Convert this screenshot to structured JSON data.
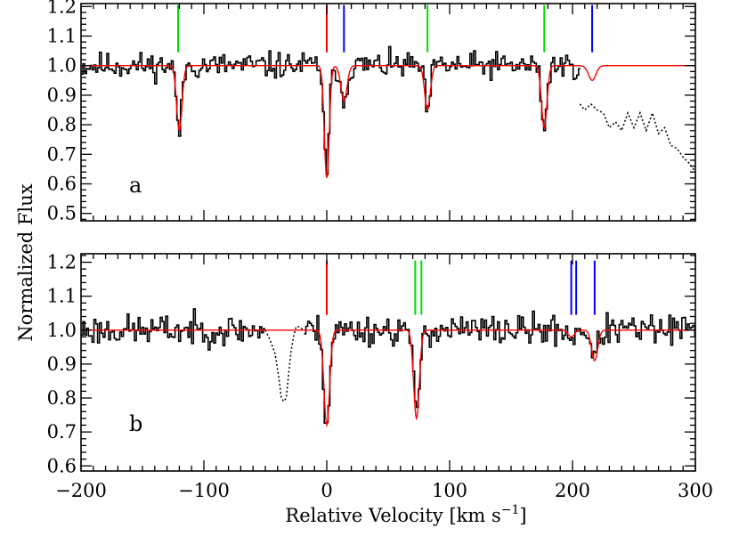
{
  "chart_data": {
    "type": "line",
    "x_axis": {
      "label": "Relative Velocity [km s",
      "label_sup": "−1",
      "label_tail": "]",
      "range": [
        -200,
        300
      ],
      "major_ticks": [
        -200,
        -100,
        0,
        100,
        200,
        300
      ],
      "major_tick_labels": [
        "−200",
        "−100",
        "0",
        "100",
        "200",
        "300"
      ],
      "minor_step": 10
    },
    "y_axis": {
      "label": "Normalized Flux"
    },
    "panels": [
      {
        "id": "a",
        "label": "a",
        "ylim": [
          0.475,
          1.21
        ],
        "yticks": [
          0.5,
          0.6,
          0.7,
          0.8,
          0.9,
          1.0,
          1.1,
          1.2
        ],
        "ytick_labels": [
          "0.5",
          "0.6",
          "0.7",
          "0.8",
          "0.9",
          "1.0",
          "1.1",
          "1.2"
        ],
        "y_minor_step": 0.02,
        "markers": [
          {
            "v": -121,
            "color": "#00dd00"
          },
          {
            "v": 0,
            "color": "#ff0000"
          },
          {
            "v": 14,
            "color": "#0000ff"
          },
          {
            "v": 82,
            "color": "#00dd00"
          },
          {
            "v": 177,
            "color": "#00dd00"
          },
          {
            "v": 216,
            "color": "#0000ff"
          }
        ],
        "components": [
          {
            "v": -120,
            "depth": 0.22,
            "width": 2.2
          },
          {
            "v": 0,
            "depth": 0.38,
            "width": 2.0
          },
          {
            "v": 14,
            "depth": 0.12,
            "width": 2.5
          },
          {
            "v": 82,
            "depth": 0.15,
            "width": 2.3
          },
          {
            "v": 177,
            "depth": 0.21,
            "width": 2.2
          },
          {
            "v": 216,
            "depth": 0.05,
            "width": 3.0
          }
        ],
        "noise_seed": 11,
        "dotted_segment": {
          "x": [
            206,
            210,
            215,
            220,
            225,
            230,
            235,
            240,
            245,
            250,
            255,
            260,
            265,
            270,
            275,
            280,
            285,
            290,
            295,
            300
          ],
          "y": [
            0.87,
            0.85,
            0.87,
            0.85,
            0.84,
            0.79,
            0.81,
            0.78,
            0.84,
            0.79,
            0.84,
            0.78,
            0.84,
            0.77,
            0.79,
            0.73,
            0.72,
            0.69,
            0.67,
            0.64
          ]
        }
      },
      {
        "id": "b",
        "label": "b",
        "ylim": [
          0.585,
          1.225
        ],
        "yticks": [
          0.6,
          0.7,
          0.8,
          0.9,
          1.0,
          1.1,
          1.2
        ],
        "ytick_labels": [
          "0.6",
          "0.7",
          "0.8",
          "0.9",
          "1.0",
          "1.1",
          "1.2"
        ],
        "y_minor_step": 0.02,
        "markers": [
          {
            "v": 0,
            "color": "#ff0000"
          },
          {
            "v": 72,
            "color": "#00dd00"
          },
          {
            "v": 77,
            "color": "#00dd00"
          },
          {
            "v": 199,
            "color": "#0000ff"
          },
          {
            "v": 203,
            "color": "#0000ff"
          },
          {
            "v": 218,
            "color": "#0000ff"
          }
        ],
        "components": [
          {
            "v": 0,
            "depth": 0.28,
            "width": 2.3
          },
          {
            "v": 73,
            "depth": 0.26,
            "width": 2.3
          },
          {
            "v": 199,
            "depth": 0.02,
            "width": 2.5
          },
          {
            "v": 218,
            "depth": 0.09,
            "width": 2.5
          }
        ],
        "noise_seed": 23,
        "dotted_segment": {
          "x": [
            -50,
            -46,
            -42,
            -39,
            -37,
            -35,
            -33,
            -31,
            -29,
            -27,
            -25,
            -22,
            -19
          ],
          "y": [
            1.0,
            0.97,
            0.93,
            0.86,
            0.8,
            0.79,
            0.8,
            0.87,
            0.94,
            0.98,
            1.01,
            1.01,
            1.0
          ]
        }
      }
    ]
  }
}
